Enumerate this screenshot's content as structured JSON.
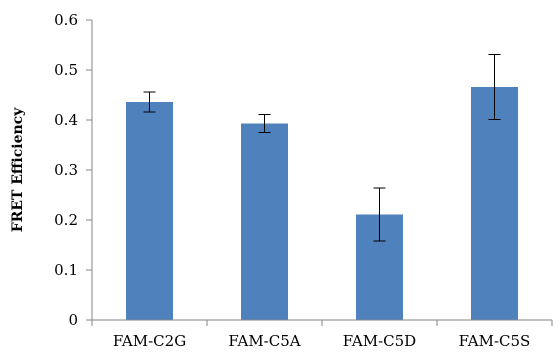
{
  "chart_data": {
    "type": "bar",
    "title": "",
    "xlabel": "",
    "ylabel": "FRET Efficiency",
    "categories": [
      "FAM-C2G",
      "FAM-C5A",
      "FAM-C5D",
      "FAM-C5S"
    ],
    "values": [
      0.436,
      0.393,
      0.211,
      0.466
    ],
    "error_bars": [
      0.02,
      0.018,
      0.053,
      0.065
    ],
    "ylim": [
      0,
      0.6
    ],
    "yticks": [
      0,
      0.1,
      0.2,
      0.3,
      0.4,
      0.5,
      0.6
    ],
    "ytick_labels": [
      "0",
      "0.1",
      "0.2",
      "0.3",
      "0.4",
      "0.5",
      "0.6"
    ],
    "grid": false,
    "legend": "none",
    "colors": {
      "bar": "#4f81bd",
      "axis": "#868686",
      "error_bar": "#000000"
    }
  }
}
